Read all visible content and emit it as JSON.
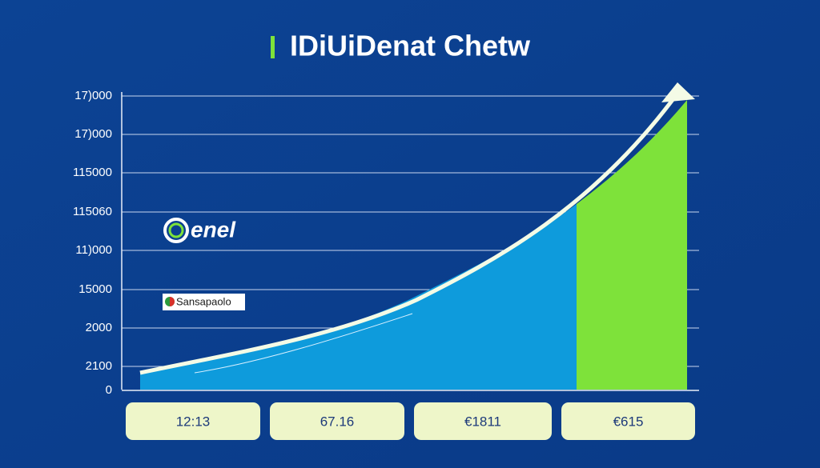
{
  "title": "IDiUiDenat Chetw",
  "y_axis_labels": [
    "17)000",
    "17)000",
    "115000",
    "115060",
    "11)000",
    "15000",
    "2000",
    "2100",
    "0"
  ],
  "bottom_boxes": [
    "12:13",
    "67.16",
    "€1811",
    "€615"
  ],
  "logos": [
    "enel",
    "Sansapaolo"
  ]
}
